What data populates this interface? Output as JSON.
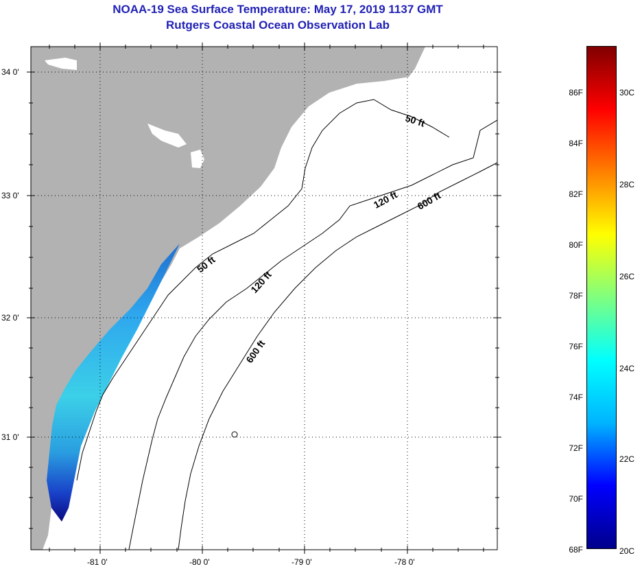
{
  "title": {
    "line1": "NOAA-19 Sea Surface Temperature:  May 17, 2019 1137 GMT",
    "line2": "Rutgers Coastal Ocean Observation Lab"
  },
  "map": {
    "lat_labels": [
      "34 0'",
      "33 0'",
      "32 0'",
      "31 0'"
    ],
    "lon_labels": [
      "-81 0'",
      "-80 0'",
      "-79 0'",
      "-78 0'"
    ],
    "contour_labels": [
      "50 ft",
      "120 ft",
      "600 ft",
      "50 ft",
      "120 ft",
      "600 ft"
    ],
    "land_color": "#b2b2b2",
    "ocean_color": "#ffffff"
  },
  "colorbar": {
    "fahrenheit_labels": [
      "86F",
      "84F",
      "82F",
      "80F",
      "78F",
      "76F",
      "74F",
      "72F",
      "70F",
      "68F"
    ],
    "celsius_labels": [
      "30C",
      "28C",
      "26C",
      "24C",
      "22C",
      "20C"
    ],
    "colors": [
      "#00008b",
      "#0000ff",
      "#00b4ff",
      "#00ffff",
      "#7fff7f",
      "#ffff00",
      "#ff8000",
      "#ff0000",
      "#800000"
    ]
  }
}
